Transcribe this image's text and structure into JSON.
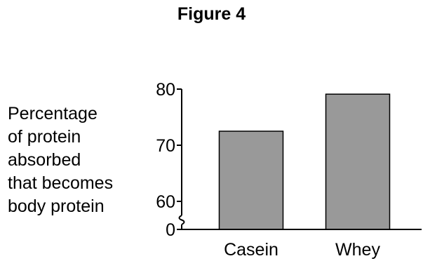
{
  "figure": {
    "title": "Figure 4"
  },
  "chart_data": {
    "type": "bar",
    "title": "Figure 4",
    "xlabel": "",
    "ylabel_lines": [
      "Percentage",
      "of protein",
      "absorbed",
      "that becomes",
      "body protein"
    ],
    "categories": [
      "Casein",
      "Whey"
    ],
    "values": [
      72.5,
      79.1
    ],
    "ylim": [
      0,
      80
    ],
    "y_axis_break": true,
    "yticks": [
      0,
      60,
      70,
      80
    ],
    "ytick_labels": [
      "0",
      "60",
      "70",
      "80"
    ],
    "grid": false,
    "bar_color": "#999999",
    "edge_color": "#000000"
  }
}
